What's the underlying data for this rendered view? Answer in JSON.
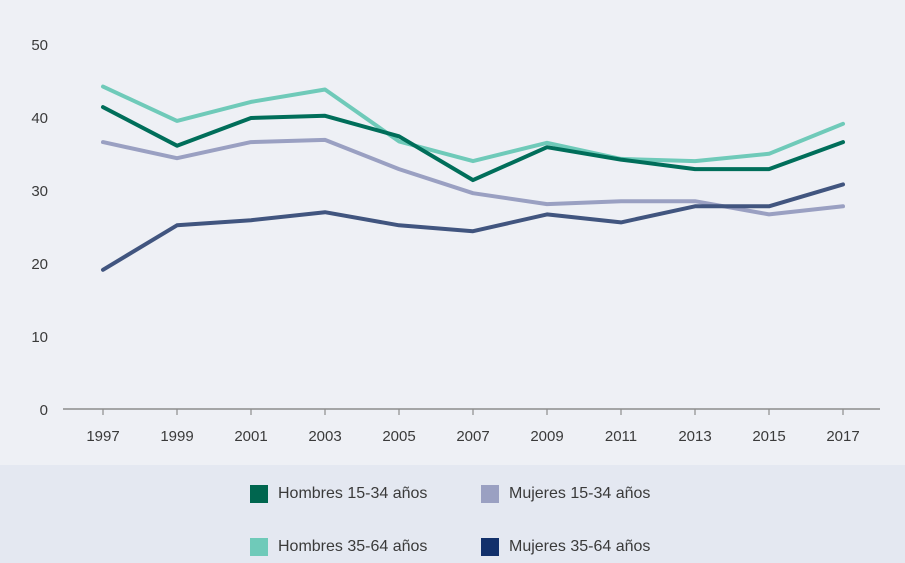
{
  "chart_data": {
    "type": "line",
    "title": "",
    "xlabel": "",
    "ylabel": "",
    "x": [
      "1997",
      "1999",
      "2001",
      "2003",
      "2005",
      "2007",
      "2009",
      "2011",
      "2013",
      "2015",
      "2017"
    ],
    "ylim": [
      0,
      50
    ],
    "yticks": [
      "0",
      "10",
      "20",
      "30",
      "40",
      "50"
    ],
    "grid": false,
    "legend_position": "bottom",
    "series": [
      {
        "name": "Hombres 15-34 años",
        "color": "#006e5a",
        "values": [
          41.5,
          36.2,
          40.0,
          40.3,
          37.5,
          31.5,
          36.0,
          34.3,
          33.0,
          33.0,
          36.7
        ]
      },
      {
        "name": "Mujeres 15-34 años",
        "color": "#9aa0c2",
        "values": [
          36.7,
          34.5,
          36.7,
          37.0,
          33.0,
          29.7,
          28.2,
          28.6,
          28.6,
          26.8,
          27.9
        ]
      },
      {
        "name": "Hombres 35-64 años",
        "color": "#6fcab9",
        "values": [
          44.3,
          39.6,
          42.2,
          43.9,
          36.8,
          34.1,
          36.6,
          34.4,
          34.1,
          35.1,
          39.2
        ]
      },
      {
        "name": "Mujeres 35-64 años",
        "color": "#41557f",
        "values": [
          19.2,
          25.3,
          26.0,
          27.1,
          25.3,
          24.5,
          26.8,
          25.7,
          27.9,
          27.9,
          30.9
        ]
      }
    ]
  },
  "legend": {
    "items": [
      {
        "label": "Hombres 15-34 años",
        "color": "#00664f"
      },
      {
        "label": "Mujeres 15-34 años",
        "color": "#9aa0c2"
      },
      {
        "label": "Hombres 35-64 años",
        "color": "#6fcab9"
      },
      {
        "label": "Mujeres 35-64 años",
        "color": "#12306b"
      }
    ]
  }
}
